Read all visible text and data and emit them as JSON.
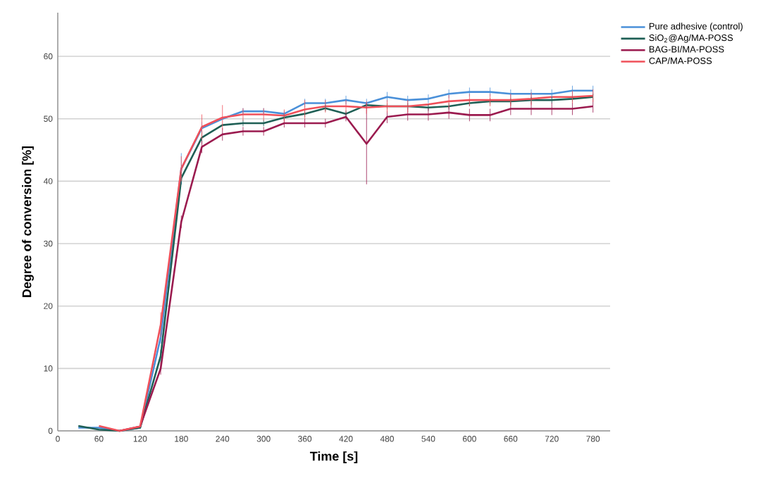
{
  "chart_data": {
    "type": "line",
    "xlabel": "Time [s]",
    "ylabel": "Degree of conversion [%]",
    "x": [
      30,
      60,
      90,
      120,
      150,
      180,
      210,
      240,
      270,
      300,
      330,
      360,
      390,
      420,
      450,
      480,
      510,
      540,
      570,
      600,
      630,
      660,
      690,
      720,
      750,
      780
    ],
    "xlim": [
      0,
      805
    ],
    "xticks": [
      0,
      60,
      120,
      180,
      240,
      300,
      360,
      420,
      480,
      540,
      600,
      660,
      720,
      780
    ],
    "ylim": [
      0,
      67
    ],
    "yticks": [
      0,
      10,
      20,
      30,
      40,
      50,
      60
    ],
    "grid": "y",
    "legend": "top right",
    "series": [
      {
        "name": "Pure adhesive (control)",
        "color": "#4a90d9",
        "values": [
          0.5,
          0.5,
          0,
          0.5,
          15,
          42,
          48.5,
          50,
          51.2,
          51.2,
          50.8,
          52.5,
          52.5,
          53,
          52.5,
          53.5,
          53,
          53.2,
          54,
          54.3,
          54.3,
          54,
          54,
          54,
          54.5,
          54.5
        ],
        "errors": [
          null,
          null,
          null,
          null,
          1,
          2.5,
          1,
          null,
          0.5,
          0.5,
          0.5,
          0.7,
          0.7,
          0.7,
          0.7,
          0.8,
          0.7,
          0.7,
          0.7,
          0.7,
          0.7,
          0.7,
          0.7,
          0.7,
          0.8,
          0.8
        ]
      },
      {
        "name": "SiO$_{2}$@Ag/MA-POSS",
        "color": "#1e5f55",
        "values": [
          0.8,
          0.2,
          0,
          0.5,
          12,
          40.5,
          47,
          49,
          49.3,
          49.3,
          50.2,
          50.8,
          51.7,
          50.8,
          52.2,
          52,
          52,
          51.8,
          52,
          52.5,
          52.8,
          52.8,
          53,
          53,
          53.2,
          53.5
        ],
        "errors": [
          null,
          null,
          null,
          null,
          1,
          1,
          1,
          null,
          0.5,
          0.5,
          0.5,
          0.5,
          0.5,
          0.5,
          null,
          0.5,
          0.5,
          0.5,
          0.5,
          0.5,
          0.5,
          0.5,
          0.5,
          0.5,
          0.5,
          0.5
        ]
      },
      {
        "name": "BAG-BI/MA-POSS",
        "color": "#9b1b4f",
        "values": [
          null,
          null,
          0,
          0.7,
          10,
          33.5,
          45.5,
          47.5,
          48,
          48,
          49.3,
          49.3,
          49.3,
          50.3,
          46,
          50.3,
          50.7,
          50.7,
          51,
          50.6,
          50.6,
          51.6,
          51.6,
          51.6,
          51.6,
          52
        ],
        "errors": [
          null,
          null,
          null,
          null,
          1,
          1,
          1,
          1,
          0.7,
          0.7,
          0.7,
          0.7,
          0.7,
          0.7,
          [
            39.5,
            52.5
          ],
          1,
          1,
          1,
          1,
          1,
          1,
          1,
          1,
          1,
          1,
          1
        ]
      },
      {
        "name": "CAP/MA-POSS",
        "color": "#f0505a",
        "values": [
          null,
          0.8,
          0,
          0.7,
          17,
          42,
          48.7,
          50.2,
          50.7,
          50.7,
          50.5,
          51.5,
          52,
          52,
          51.8,
          52,
          52,
          52.3,
          52.8,
          53,
          53,
          53,
          53.2,
          53.5,
          53.5,
          53.7
        ],
        "errors": [
          null,
          null,
          null,
          null,
          2,
          2,
          2,
          2,
          1,
          1,
          1,
          1.5,
          1,
          1,
          1,
          1,
          1,
          null,
          1,
          1,
          1,
          1,
          1,
          null,
          1,
          1
        ]
      }
    ]
  }
}
